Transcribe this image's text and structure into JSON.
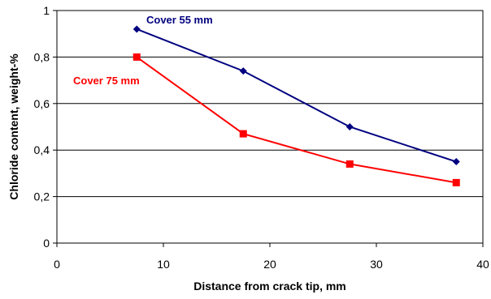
{
  "chart_data": {
    "type": "line",
    "xlabel": "Distance from crack tip, mm",
    "ylabel": "Chloride content, weight-%",
    "xlim": [
      0,
      40
    ],
    "ylim": [
      0,
      1
    ],
    "x_ticks": [
      "0",
      "10",
      "20",
      "30",
      "40"
    ],
    "y_ticks": [
      "0",
      "0,2",
      "0,4",
      "0,6",
      "0,8",
      "1"
    ],
    "grid": "horizontal",
    "legend": "inline labels",
    "series": [
      {
        "name": "Cover 55 mm",
        "color": "#000080",
        "marker": "diamond",
        "x": [
          7.5,
          17.5,
          27.5,
          37.5
        ],
        "y": [
          0.92,
          0.74,
          0.5,
          0.35
        ]
      },
      {
        "name": "Cover 75 mm",
        "color": "#ff0000",
        "marker": "square",
        "x": [
          7.5,
          17.5,
          27.5,
          37.5
        ],
        "y": [
          0.8,
          0.47,
          0.34,
          0.26
        ]
      }
    ]
  }
}
